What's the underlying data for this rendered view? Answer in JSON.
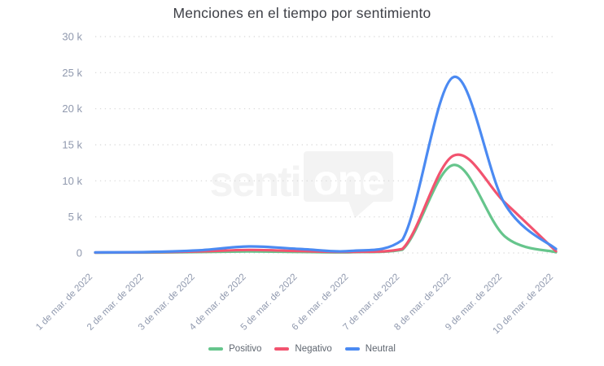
{
  "chart_data": {
    "type": "line",
    "title": "Menciones en el tiempo por sentimiento",
    "categories": [
      "1 de mar. de 2022",
      "2 de mar. de 2022",
      "3 de mar. de 2022",
      "4 de mar. de 2022",
      "5 de mar. de 2022",
      "6 de mar. de 2022",
      "7 de mar. de 2022",
      "8 de mar. de 2022",
      "9 de mar. de 2022",
      "10 de mar. de 2022"
    ],
    "series": [
      {
        "name": "Positivo",
        "color": "#66c58c",
        "values": [
          30,
          60,
          120,
          200,
          140,
          100,
          450,
          12200,
          2300,
          100
        ]
      },
      {
        "name": "Negativo",
        "color": "#f2536f",
        "values": [
          60,
          90,
          200,
          420,
          260,
          160,
          550,
          13500,
          7000,
          250
        ]
      },
      {
        "name": "Neutral",
        "color": "#4b8af2",
        "values": [
          80,
          120,
          350,
          900,
          550,
          280,
          1800,
          24400,
          6800,
          550
        ]
      }
    ],
    "y_axis": {
      "tick_labels": [
        "30 k",
        "25 k",
        "20 k",
        "15 k",
        "10 k",
        "5 k",
        "0"
      ],
      "tick_values": [
        30000,
        25000,
        20000,
        15000,
        10000,
        5000,
        0
      ]
    },
    "ylim": [
      0,
      30000
    ],
    "xlabel": "",
    "ylabel": "",
    "grid": "dotted-horizontal",
    "legend_position": "bottom-center",
    "watermark": {
      "text_left": "senti",
      "text_bubble": "one"
    }
  }
}
